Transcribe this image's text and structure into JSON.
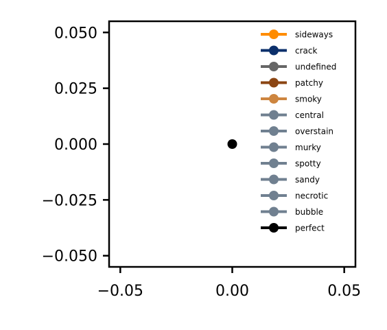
{
  "chart_data": {
    "type": "line",
    "title": "",
    "xlabel": "",
    "ylabel": "",
    "xlim": [
      -0.055,
      0.055
    ],
    "ylim": [
      -0.055,
      0.055
    ],
    "x_ticks": [
      -0.05,
      0.0,
      0.05
    ],
    "x_tick_labels": [
      "−0.05",
      "0.00",
      "0.05"
    ],
    "y_ticks": [
      0.05,
      0.025,
      0.0,
      -0.025,
      -0.05
    ],
    "y_tick_labels": [
      "0.050",
      "0.025",
      "0.000",
      "−0.025",
      "−0.050"
    ],
    "grid": false,
    "legend_position": "upper-right",
    "series": [
      {
        "name": "sideways",
        "color": "#ff8c00",
        "x": [],
        "y": []
      },
      {
        "name": "crack",
        "color": "#0b2f6b",
        "x": [],
        "y": []
      },
      {
        "name": "undefined",
        "color": "#666666",
        "x": [],
        "y": []
      },
      {
        "name": "patchy",
        "color": "#8b4513",
        "x": [],
        "y": []
      },
      {
        "name": "smoky",
        "color": "#cd853f",
        "x": [],
        "y": []
      },
      {
        "name": "central",
        "color": "#708090",
        "x": [],
        "y": []
      },
      {
        "name": "overstain",
        "color": "#708090",
        "x": [],
        "y": []
      },
      {
        "name": "murky",
        "color": "#708090",
        "x": [],
        "y": []
      },
      {
        "name": "spotty",
        "color": "#708090",
        "x": [],
        "y": []
      },
      {
        "name": "sandy",
        "color": "#708090",
        "x": [],
        "y": []
      },
      {
        "name": "necrotic",
        "color": "#708090",
        "x": [],
        "y": []
      },
      {
        "name": "bubble",
        "color": "#708090",
        "x": [],
        "y": []
      },
      {
        "name": "perfect",
        "color": "#000000",
        "x": [
          0.0
        ],
        "y": [
          0.0
        ]
      }
    ]
  }
}
